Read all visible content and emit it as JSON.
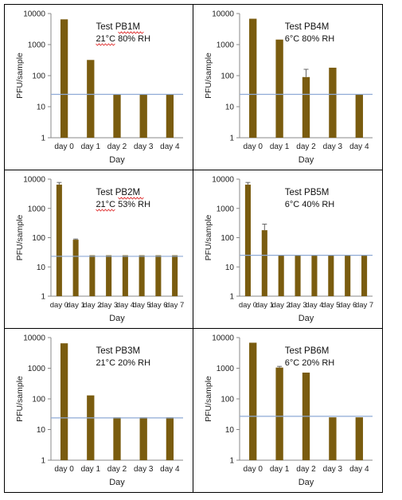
{
  "chart_data": [
    {
      "type": "bar",
      "title": "Test PB1M",
      "subtitle": "21°C 80% RH",
      "xlabel": "Day",
      "ylabel": "PFU/sample",
      "yscale": "log",
      "ylim": [
        1,
        10000
      ],
      "yticks": [
        "1",
        "10",
        "100",
        "1000",
        "10000"
      ],
      "categories": [
        "day 0",
        "day 1",
        "day 2",
        "day 3",
        "day 4"
      ],
      "values": [
        6500,
        320,
        25,
        25,
        25
      ],
      "errors": [
        0,
        0,
        0,
        0,
        0
      ],
      "reference_line": 25,
      "bar_color": "#7a5c0f",
      "line_color": "#8eaad6"
    },
    {
      "type": "bar",
      "title": "Test PB4M",
      "subtitle": "6°C 80% RH",
      "xlabel": "Day",
      "ylabel": "PFU/sample",
      "yscale": "log",
      "ylim": [
        1,
        10000
      ],
      "yticks": [
        "1",
        "10",
        "100",
        "1000",
        "10000"
      ],
      "categories": [
        "day 0",
        "day 1",
        "day 2",
        "day 3",
        "day 4"
      ],
      "values": [
        6800,
        1450,
        90,
        180,
        25
      ],
      "errors": [
        0,
        0,
        70,
        0,
        0
      ],
      "reference_line": 25,
      "bar_color": "#7a5c0f",
      "line_color": "#8eaad6"
    },
    {
      "type": "bar",
      "title": "Test PB2M",
      "subtitle": "21°C 53% RH",
      "xlabel": "Day",
      "ylabel": "PFU/sample",
      "yscale": "log",
      "ylim": [
        1,
        10000
      ],
      "yticks": [
        "1",
        "10",
        "100",
        "1000",
        "10000"
      ],
      "categories": [
        "day 0",
        "day 1",
        "day 2",
        "day 3",
        "day 4",
        "day 5",
        "day 6",
        "day 7"
      ],
      "values": [
        6500,
        85,
        25,
        25,
        25,
        25,
        25,
        25
      ],
      "errors": [
        1200,
        5,
        0,
        0,
        0,
        0,
        0,
        0
      ],
      "reference_line": 23,
      "bar_color": "#7a5c0f",
      "line_color": "#8eaad6"
    },
    {
      "type": "bar",
      "title": "Test PB5M",
      "subtitle": "6°C 40% RH",
      "xlabel": "Day",
      "ylabel": "PFU/sample",
      "yscale": "log",
      "ylim": [
        1,
        10000
      ],
      "yticks": [
        "1",
        "10",
        "100",
        "1000",
        "10000"
      ],
      "categories": [
        "day 0",
        "day 1",
        "day 2",
        "day 3",
        "day 4",
        "day 5",
        "day 6",
        "day 7"
      ],
      "values": [
        6500,
        180,
        25,
        25,
        25,
        25,
        25,
        25
      ],
      "errors": [
        1200,
        110,
        0,
        0,
        0,
        0,
        0,
        0
      ],
      "reference_line": 25,
      "bar_color": "#7a5c0f",
      "line_color": "#8eaad6"
    },
    {
      "type": "bar",
      "title": "Test PB3M",
      "subtitle": "21°C 20% RH",
      "xlabel": "Day",
      "ylabel": "PFU/sample",
      "yscale": "log",
      "ylim": [
        1,
        10000
      ],
      "yticks": [
        "1",
        "10",
        "100",
        "1000",
        "10000"
      ],
      "categories": [
        "day 0",
        "day 1",
        "day 2",
        "day 3",
        "day 4"
      ],
      "values": [
        6500,
        130,
        25,
        25,
        25
      ],
      "errors": [
        0,
        0,
        0,
        0,
        0
      ],
      "reference_line": 24,
      "bar_color": "#7a5c0f",
      "line_color": "#8eaad6"
    },
    {
      "type": "bar",
      "title": "Test PB6M",
      "subtitle": "6°C 20% RH",
      "xlabel": "Day",
      "ylabel": "PFU/sample",
      "yscale": "log",
      "ylim": [
        1,
        10000
      ],
      "yticks": [
        "1",
        "10",
        "100",
        "1000",
        "10000"
      ],
      "categories": [
        "day 0",
        "day 1",
        "day 2",
        "day 3",
        "day 4"
      ],
      "values": [
        6800,
        1050,
        720,
        25,
        25
      ],
      "errors": [
        0,
        100,
        0,
        0,
        0
      ],
      "reference_line": 27,
      "bar_color": "#7a5c0f",
      "line_color": "#8eaad6"
    }
  ]
}
